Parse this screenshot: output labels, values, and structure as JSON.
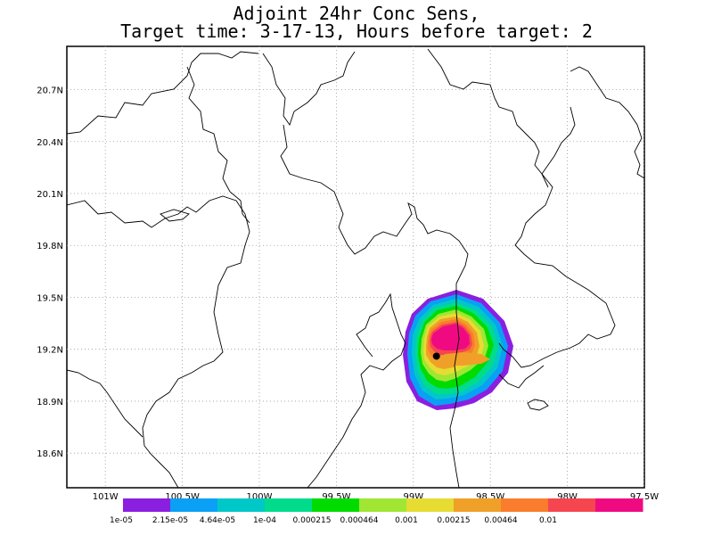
{
  "title_line1": "Adjoint 24hr Conc Sens,",
  "title_line2": "Target time: 3-17-13, Hours before target: 2",
  "map": {
    "lat_labels": [
      "20.7N",
      "20.4N",
      "20.1N",
      "19.8N",
      "19.5N",
      "19.2N",
      "18.9N",
      "18.6N"
    ],
    "lon_labels": [
      "101W",
      "100.5W",
      "100W",
      "99.5W",
      "99W",
      "98.5W",
      "98W",
      "97.5W"
    ],
    "lon_range": [
      -101.25,
      -97.5
    ],
    "lat_range": [
      18.4,
      20.95
    ],
    "grid": true,
    "marker": {
      "lon": -98.85,
      "lat": 19.16
    }
  },
  "colorbar": {
    "labels": [
      "1e-05",
      "2.15e-05",
      "4.64e-05",
      "1e-04",
      "0.000215",
      "0.000464",
      "0.001",
      "0.00215",
      "0.00464",
      "0.01"
    ],
    "colors": [
      "#8a1fe0",
      "#0aa0f5",
      "#00c8c8",
      "#00dc8c",
      "#00dc00",
      "#a0e632",
      "#e6dc32",
      "#f0a028",
      "#fa7d2d",
      "#f54650",
      "#f00a82"
    ]
  }
}
